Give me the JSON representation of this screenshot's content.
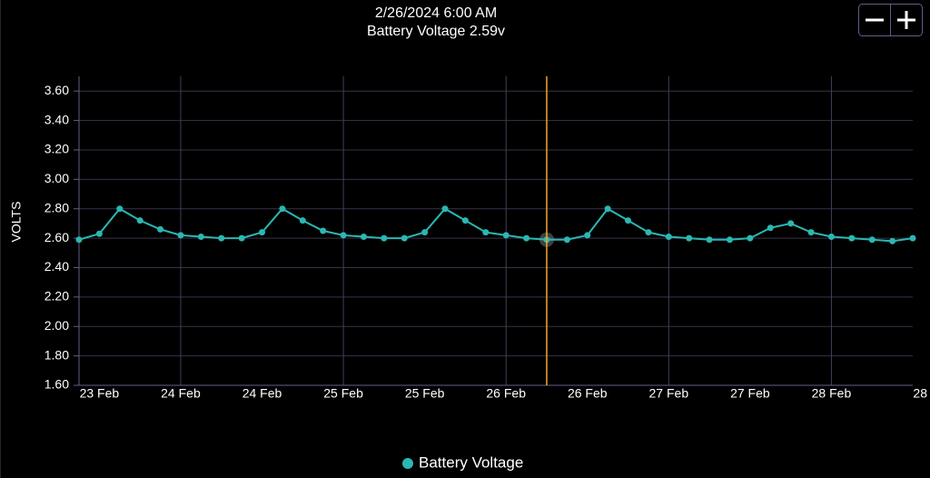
{
  "chart_data": {
    "type": "line",
    "title": "2/26/2024 6:00 AM",
    "subtitle": "Battery Voltage 2.59v",
    "y_label": "VOLTS",
    "categories": [
      null,
      "23 Feb",
      null,
      null,
      null,
      "24 Feb",
      null,
      null,
      null,
      "24 Feb",
      null,
      null,
      null,
      "25 Feb",
      null,
      null,
      null,
      "25 Feb",
      null,
      null,
      null,
      "26 Feb",
      null,
      null,
      null,
      "26 Feb",
      null,
      null,
      null,
      "27 Feb",
      null,
      null,
      null,
      "27 Feb",
      null,
      null,
      null,
      "28 Feb",
      null,
      null,
      null,
      "28"
    ],
    "series": [
      {
        "name": "Battery Voltage",
        "color": "#2bb7b3",
        "values": [
          2.59,
          2.63,
          2.8,
          2.72,
          2.66,
          2.62,
          2.61,
          2.6,
          2.6,
          2.64,
          2.8,
          2.72,
          2.65,
          2.62,
          2.61,
          2.6,
          2.6,
          2.64,
          2.8,
          2.72,
          2.64,
          2.62,
          2.6,
          2.59,
          2.59,
          2.62,
          2.8,
          2.72,
          2.64,
          2.61,
          2.6,
          2.59,
          2.59,
          2.6,
          2.67,
          2.7,
          2.64,
          2.61,
          2.6,
          2.59,
          2.58,
          2.6
        ]
      }
    ],
    "ylim": [
      1.6,
      3.7
    ],
    "yticks": [
      {
        "value": 1.6,
        "label": "1.60"
      },
      {
        "value": 1.8,
        "label": "1.80"
      },
      {
        "value": 2.0,
        "label": "2.00"
      },
      {
        "value": 2.2,
        "label": "2.20"
      },
      {
        "value": 2.4,
        "label": "2.40"
      },
      {
        "value": 2.6,
        "label": "2.60"
      },
      {
        "value": 2.8,
        "label": "2.80"
      },
      {
        "value": 3.0,
        "label": "3.00"
      },
      {
        "value": 3.2,
        "label": "3.20"
      },
      {
        "value": 3.4,
        "label": "3.40"
      },
      {
        "value": 3.6,
        "label": "3.60"
      }
    ],
    "grid": true,
    "cursor_index": 23,
    "cursor_color": "#f5a623",
    "legend": "bottom"
  }
}
